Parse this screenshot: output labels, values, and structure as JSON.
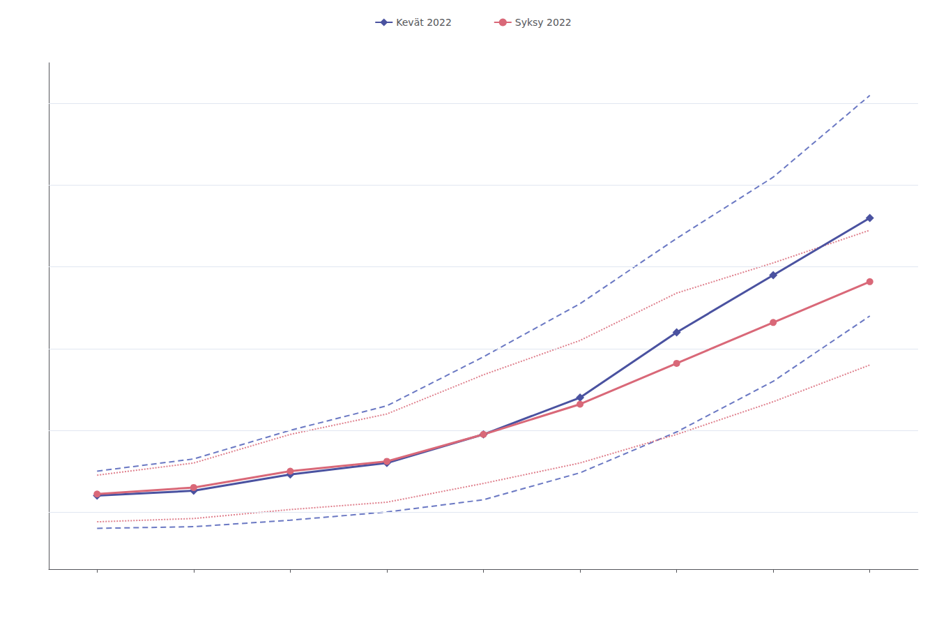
{
  "chart_data": {
    "type": "line",
    "x": [
      1,
      2,
      3,
      4,
      5,
      6,
      7,
      8,
      9
    ],
    "series": [
      {
        "color": "#5060b8",
        "line_style": "dashed",
        "values": [
          1.5,
          1.65,
          2.0,
          2.3,
          2.9,
          3.55,
          4.35,
          5.1,
          6.1
        ]
      },
      {
        "color": "#5060b8",
        "line_style": "dashed",
        "values": [
          0.8,
          0.82,
          0.9,
          1.0,
          1.15,
          1.48,
          1.98,
          2.6,
          3.4
        ]
      },
      {
        "color": "#d96878",
        "line_style": "dotted",
        "values": [
          1.45,
          1.6,
          1.95,
          2.2,
          2.68,
          3.1,
          3.68,
          4.05,
          4.45
        ]
      },
      {
        "color": "#d96878",
        "line_style": "dotted",
        "values": [
          0.88,
          0.92,
          1.03,
          1.12,
          1.35,
          1.6,
          1.95,
          2.35,
          2.8
        ]
      },
      {
        "name": "Kevät 2022",
        "color": "#4a52a0",
        "line_style": "solid",
        "marker": "diamond",
        "values": [
          1.2,
          1.26,
          1.46,
          1.6,
          1.95,
          2.4,
          3.2,
          3.9,
          4.6
        ]
      },
      {
        "name": "Syksy 2022",
        "color": "#d96878",
        "line_style": "solid",
        "marker": "circle",
        "values": [
          1.22,
          1.3,
          1.5,
          1.62,
          1.95,
          2.32,
          2.82,
          3.32,
          3.82
        ]
      }
    ],
    "xlim": [
      0.5,
      9.5
    ],
    "xticks": [
      1,
      2,
      3,
      4,
      5,
      6,
      7,
      8,
      9
    ],
    "ylim": [
      0.3,
      6.5
    ],
    "yticks": [
      1,
      2,
      3,
      4,
      5,
      6
    ],
    "grid": true,
    "legend": "top",
    "tick_labels": false
  }
}
